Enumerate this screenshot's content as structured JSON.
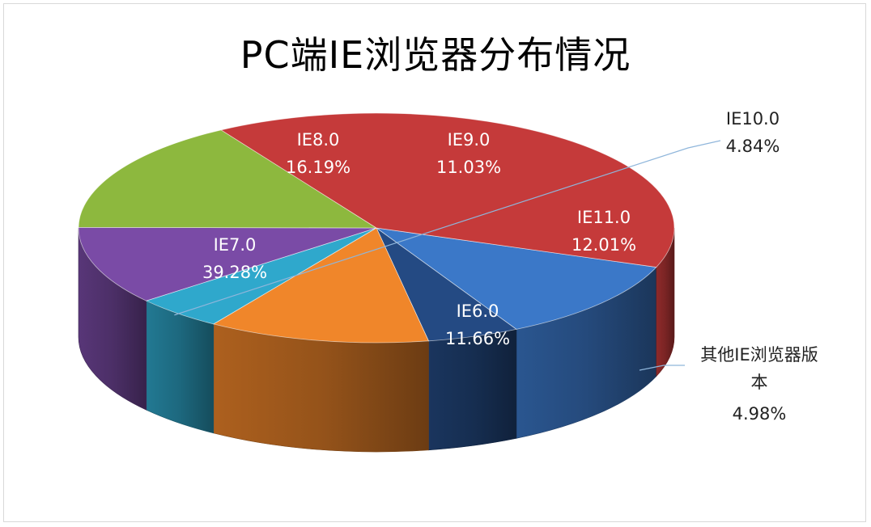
{
  "chart_data": {
    "type": "pie",
    "title": "PC端IE浏览器分布情况",
    "slices": [
      {
        "name": "IE6.0",
        "value": 11.66,
        "label": "11.66%",
        "color": "#3B78C8"
      },
      {
        "name": "其他IE浏览器版本",
        "name_lines": [
          "其他IE浏览器版",
          "本"
        ],
        "value": 4.98,
        "label": "4.98%",
        "color": "#244A83"
      },
      {
        "name": "IE11.0",
        "value": 12.01,
        "label": "12.01%",
        "color": "#F0862A"
      },
      {
        "name": "IE10.0",
        "value": 4.84,
        "label": "4.84%",
        "color": "#2FA8CC"
      },
      {
        "name": "IE9.0",
        "value": 11.03,
        "label": "11.03%",
        "color": "#7A4BA6"
      },
      {
        "name": "IE8.0",
        "value": 16.19,
        "label": "16.19%",
        "color": "#8DB83E"
      },
      {
        "name": "IE7.0",
        "value": 39.28,
        "label": "39.28%",
        "color": "#C53A3A"
      }
    ]
  }
}
